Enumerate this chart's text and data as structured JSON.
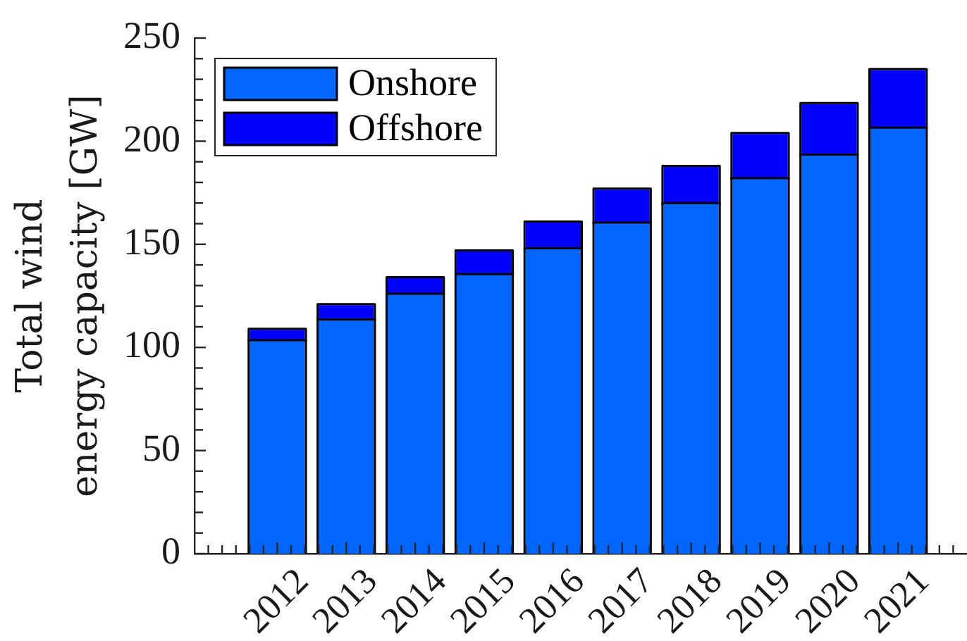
{
  "chart_data": {
    "type": "bar",
    "ylabel": "Total wind\nenergy capacity [GW]",
    "x": [
      2012,
      2013,
      2014,
      2015,
      2016,
      2017,
      2018,
      2019,
      2020,
      2021
    ],
    "series": [
      {
        "name": "Onshore",
        "color": "#0066ff",
        "values": [
          103,
          113,
          125.5,
          135,
          147.5,
          160,
          169.5,
          181.5,
          193,
          206
        ]
      },
      {
        "name": "Offshore",
        "color": "#0000ff",
        "values": [
          5.5,
          7.5,
          8,
          11.5,
          13,
          16.5,
          18,
          22,
          25,
          28.5
        ]
      }
    ],
    "stacked": true,
    "xlim": [
      2010.8,
      2022
    ],
    "xticks": [
      {
        "value": 2011,
        "label": null
      },
      {
        "value": 2011.2,
        "label": null
      },
      {
        "value": 2011.4,
        "label": null
      },
      {
        "value": 2011.6,
        "label": null
      },
      {
        "value": 2011.8,
        "label": null
      },
      2012,
      {
        "value": 2012.2,
        "label": null
      },
      {
        "value": 2012.4,
        "label": null
      },
      {
        "value": 2012.6,
        "label": null
      },
      {
        "value": 2012.8,
        "label": null
      },
      2013,
      {
        "value": 2013.2,
        "label": null
      },
      {
        "value": 2013.4,
        "label": null
      },
      {
        "value": 2013.6,
        "label": null
      },
      {
        "value": 2013.8,
        "label": null
      },
      2014,
      {
        "value": 2014.2,
        "label": null
      },
      {
        "value": 2014.4,
        "label": null
      },
      {
        "value": 2014.6,
        "label": null
      },
      {
        "value": 2014.8,
        "label": null
      },
      2015,
      {
        "value": 2015.2,
        "label": null
      },
      {
        "value": 2015.4,
        "label": null
      },
      {
        "value": 2015.6,
        "label": null
      },
      {
        "value": 2015.8,
        "label": null
      },
      2016,
      {
        "value": 2016.2,
        "label": null
      },
      {
        "value": 2016.4,
        "label": null
      },
      {
        "value": 2016.6,
        "label": null
      },
      {
        "value": 2016.8,
        "label": null
      },
      2017,
      {
        "value": 2017.2,
        "label": null
      },
      {
        "value": 2017.4,
        "label": null
      },
      {
        "value": 2017.6,
        "label": null
      },
      {
        "value": 2017.8,
        "label": null
      },
      2018,
      {
        "value": 2018.2,
        "label": null
      },
      {
        "value": 2018.4,
        "label": null
      },
      {
        "value": 2018.6,
        "label": null
      },
      {
        "value": 2018.8,
        "label": null
      },
      2019,
      {
        "value": 2019.2,
        "label": null
      },
      {
        "value": 2019.4,
        "label": null
      },
      {
        "value": 2019.6,
        "label": null
      },
      {
        "value": 2019.8,
        "label": null
      },
      2020,
      {
        "value": 2020.2,
        "label": null
      },
      {
        "value": 2020.4,
        "label": null
      },
      {
        "value": 2020.6,
        "label": null
      },
      {
        "value": 2020.8,
        "label": null
      },
      2021,
      {
        "value": 2021.2,
        "label": null
      },
      {
        "value": 2021.4,
        "label": null
      },
      {
        "value": 2021.6,
        "label": null
      },
      {
        "value": 2021.8,
        "label": null
      }
    ],
    "ylim": [
      0,
      250
    ],
    "yticks": [
      0,
      {
        "value": 10,
        "label": null
      },
      {
        "value": 20,
        "label": null
      },
      {
        "value": 30,
        "label": null
      },
      {
        "value": 40,
        "label": null
      },
      50,
      {
        "value": 60,
        "label": null
      },
      {
        "value": 70,
        "label": null
      },
      {
        "value": 80,
        "label": null
      },
      {
        "value": 90,
        "label": null
      },
      100,
      {
        "value": 110,
        "label": null
      },
      {
        "value": 120,
        "label": null
      },
      {
        "value": 130,
        "label": null
      },
      {
        "value": 140,
        "label": null
      },
      150,
      {
        "value": 160,
        "label": null
      },
      {
        "value": 170,
        "label": null
      },
      {
        "value": 180,
        "label": null
      },
      {
        "value": 190,
        "label": null
      },
      200,
      {
        "value": 210,
        "label": null
      },
      {
        "value": 220,
        "label": null
      },
      {
        "value": 230,
        "label": null
      },
      {
        "value": 240,
        "label": null
      },
      250
    ],
    "grid": false,
    "legend": "top left"
  }
}
